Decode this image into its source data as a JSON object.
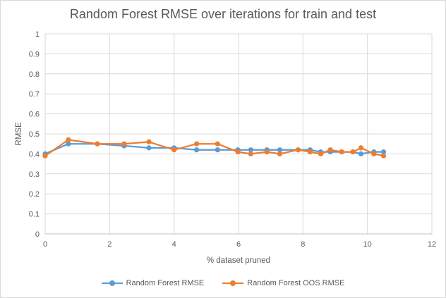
{
  "chart_data": {
    "type": "scatter",
    "title": "Random Forest RMSE over iterations for train and test",
    "xlabel": "% dataset pruned",
    "ylabel": "RMSE",
    "xlim": [
      0,
      12
    ],
    "ylim": [
      0,
      1
    ],
    "x_ticks": [
      "0",
      "2",
      "4",
      "6",
      "8",
      "10",
      "12"
    ],
    "y_ticks": [
      "0",
      "0.1",
      "0.2",
      "0.3",
      "0.4",
      "0.5",
      "0.6",
      "0.7",
      "0.8",
      "0.9",
      "1"
    ],
    "grid": true,
    "legend_position": "bottom",
    "series": [
      {
        "name": "Random Forest RMSE",
        "color": "#5b9bd5",
        "x": [
          0,
          0.72,
          1.62,
          2.45,
          3.22,
          4.0,
          4.7,
          5.35,
          5.98,
          6.38,
          6.88,
          7.28,
          7.85,
          8.22,
          8.55,
          8.85,
          9.2,
          9.55,
          9.8,
          10.2,
          10.5
        ],
        "y": [
          0.4,
          0.45,
          0.45,
          0.44,
          0.43,
          0.43,
          0.42,
          0.42,
          0.42,
          0.42,
          0.42,
          0.42,
          0.42,
          0.42,
          0.41,
          0.41,
          0.41,
          0.41,
          0.4,
          0.41,
          0.41
        ]
      },
      {
        "name": "Random Forest OOS RMSE",
        "color": "#ed7d31",
        "x": [
          0,
          0.72,
          1.62,
          2.45,
          3.22,
          4.0,
          4.7,
          5.35,
          5.98,
          6.38,
          6.88,
          7.28,
          7.85,
          8.22,
          8.55,
          8.85,
          9.2,
          9.55,
          9.8,
          10.2,
          10.5
        ],
        "y": [
          0.39,
          0.47,
          0.45,
          0.45,
          0.46,
          0.42,
          0.45,
          0.45,
          0.41,
          0.4,
          0.41,
          0.4,
          0.42,
          0.41,
          0.4,
          0.42,
          0.41,
          0.41,
          0.43,
          0.4,
          0.39
        ]
      }
    ]
  }
}
